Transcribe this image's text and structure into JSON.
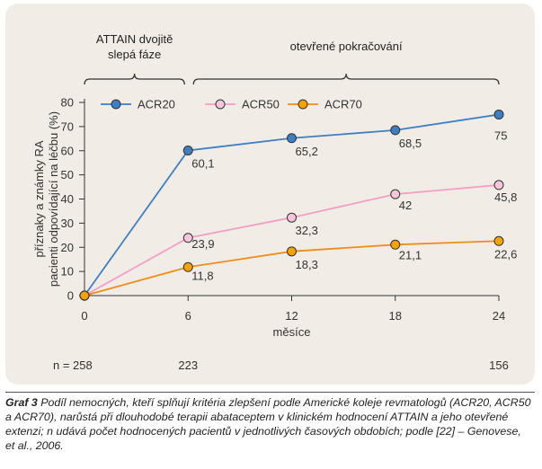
{
  "chart_data": {
    "type": "line",
    "x": [
      0,
      6,
      12,
      18,
      24
    ],
    "xlabel": "měsíce",
    "ylabel_line1": "příznaky a známky RA",
    "ylabel_line2": "pacienti odpovídající na léčbu (%)",
    "xlim": [
      0,
      24
    ],
    "ylim": [
      0,
      80
    ],
    "yticks": [
      0,
      10,
      20,
      30,
      40,
      50,
      60,
      70,
      80
    ],
    "grid": false,
    "legend_position": "top-left",
    "series": [
      {
        "name": "ACR20",
        "color": "#3f7fc1",
        "marker_fill": "#3f7fc1",
        "values": [
          0,
          60.1,
          65.2,
          68.5,
          75
        ],
        "labels": [
          "",
          "60,1",
          "65,2",
          "68,5",
          "75"
        ]
      },
      {
        "name": "ACR50",
        "color": "#f29ec6",
        "marker_fill": "#f7c6dd",
        "values": [
          0,
          23.9,
          32.3,
          42,
          45.8
        ],
        "labels": [
          "",
          "23,9",
          "32,3",
          "42",
          "45,8"
        ]
      },
      {
        "name": "ACR70",
        "color": "#f08c1a",
        "marker_fill": "#f5a300",
        "values": [
          0,
          11.8,
          18.3,
          21.1,
          22.6
        ],
        "labels": [
          "",
          "11,8",
          "18,3",
          "21,1",
          "22,6"
        ]
      }
    ],
    "phases": [
      {
        "label_lines": [
          "ATTAIN dvojitě",
          "slepá fáze"
        ],
        "from": 0,
        "to": 6
      },
      {
        "label_lines": [
          "otevřené pokračování"
        ],
        "from": 6,
        "to": 24
      }
    ],
    "n_label": "n = 258",
    "n_values": [
      {
        "x": 6,
        "text": "223"
      },
      {
        "x": 24,
        "text": "156"
      }
    ]
  },
  "caption": {
    "label": "Graf 3",
    "text": "Podíl nemocných, kteří splňují kritéria zlepšení podle Americké koleje revmatologů (ACR20, ACR50 a ACR70), narůstá při dlouhodobé terapii abataceptem v klinickém hodnocení ATTAIN a jeho otevřené extenzi; n udává počet hodnocených pacientů v jednotlivých časových obdobích; podle [22] – Genovese, et al., 2006."
  }
}
